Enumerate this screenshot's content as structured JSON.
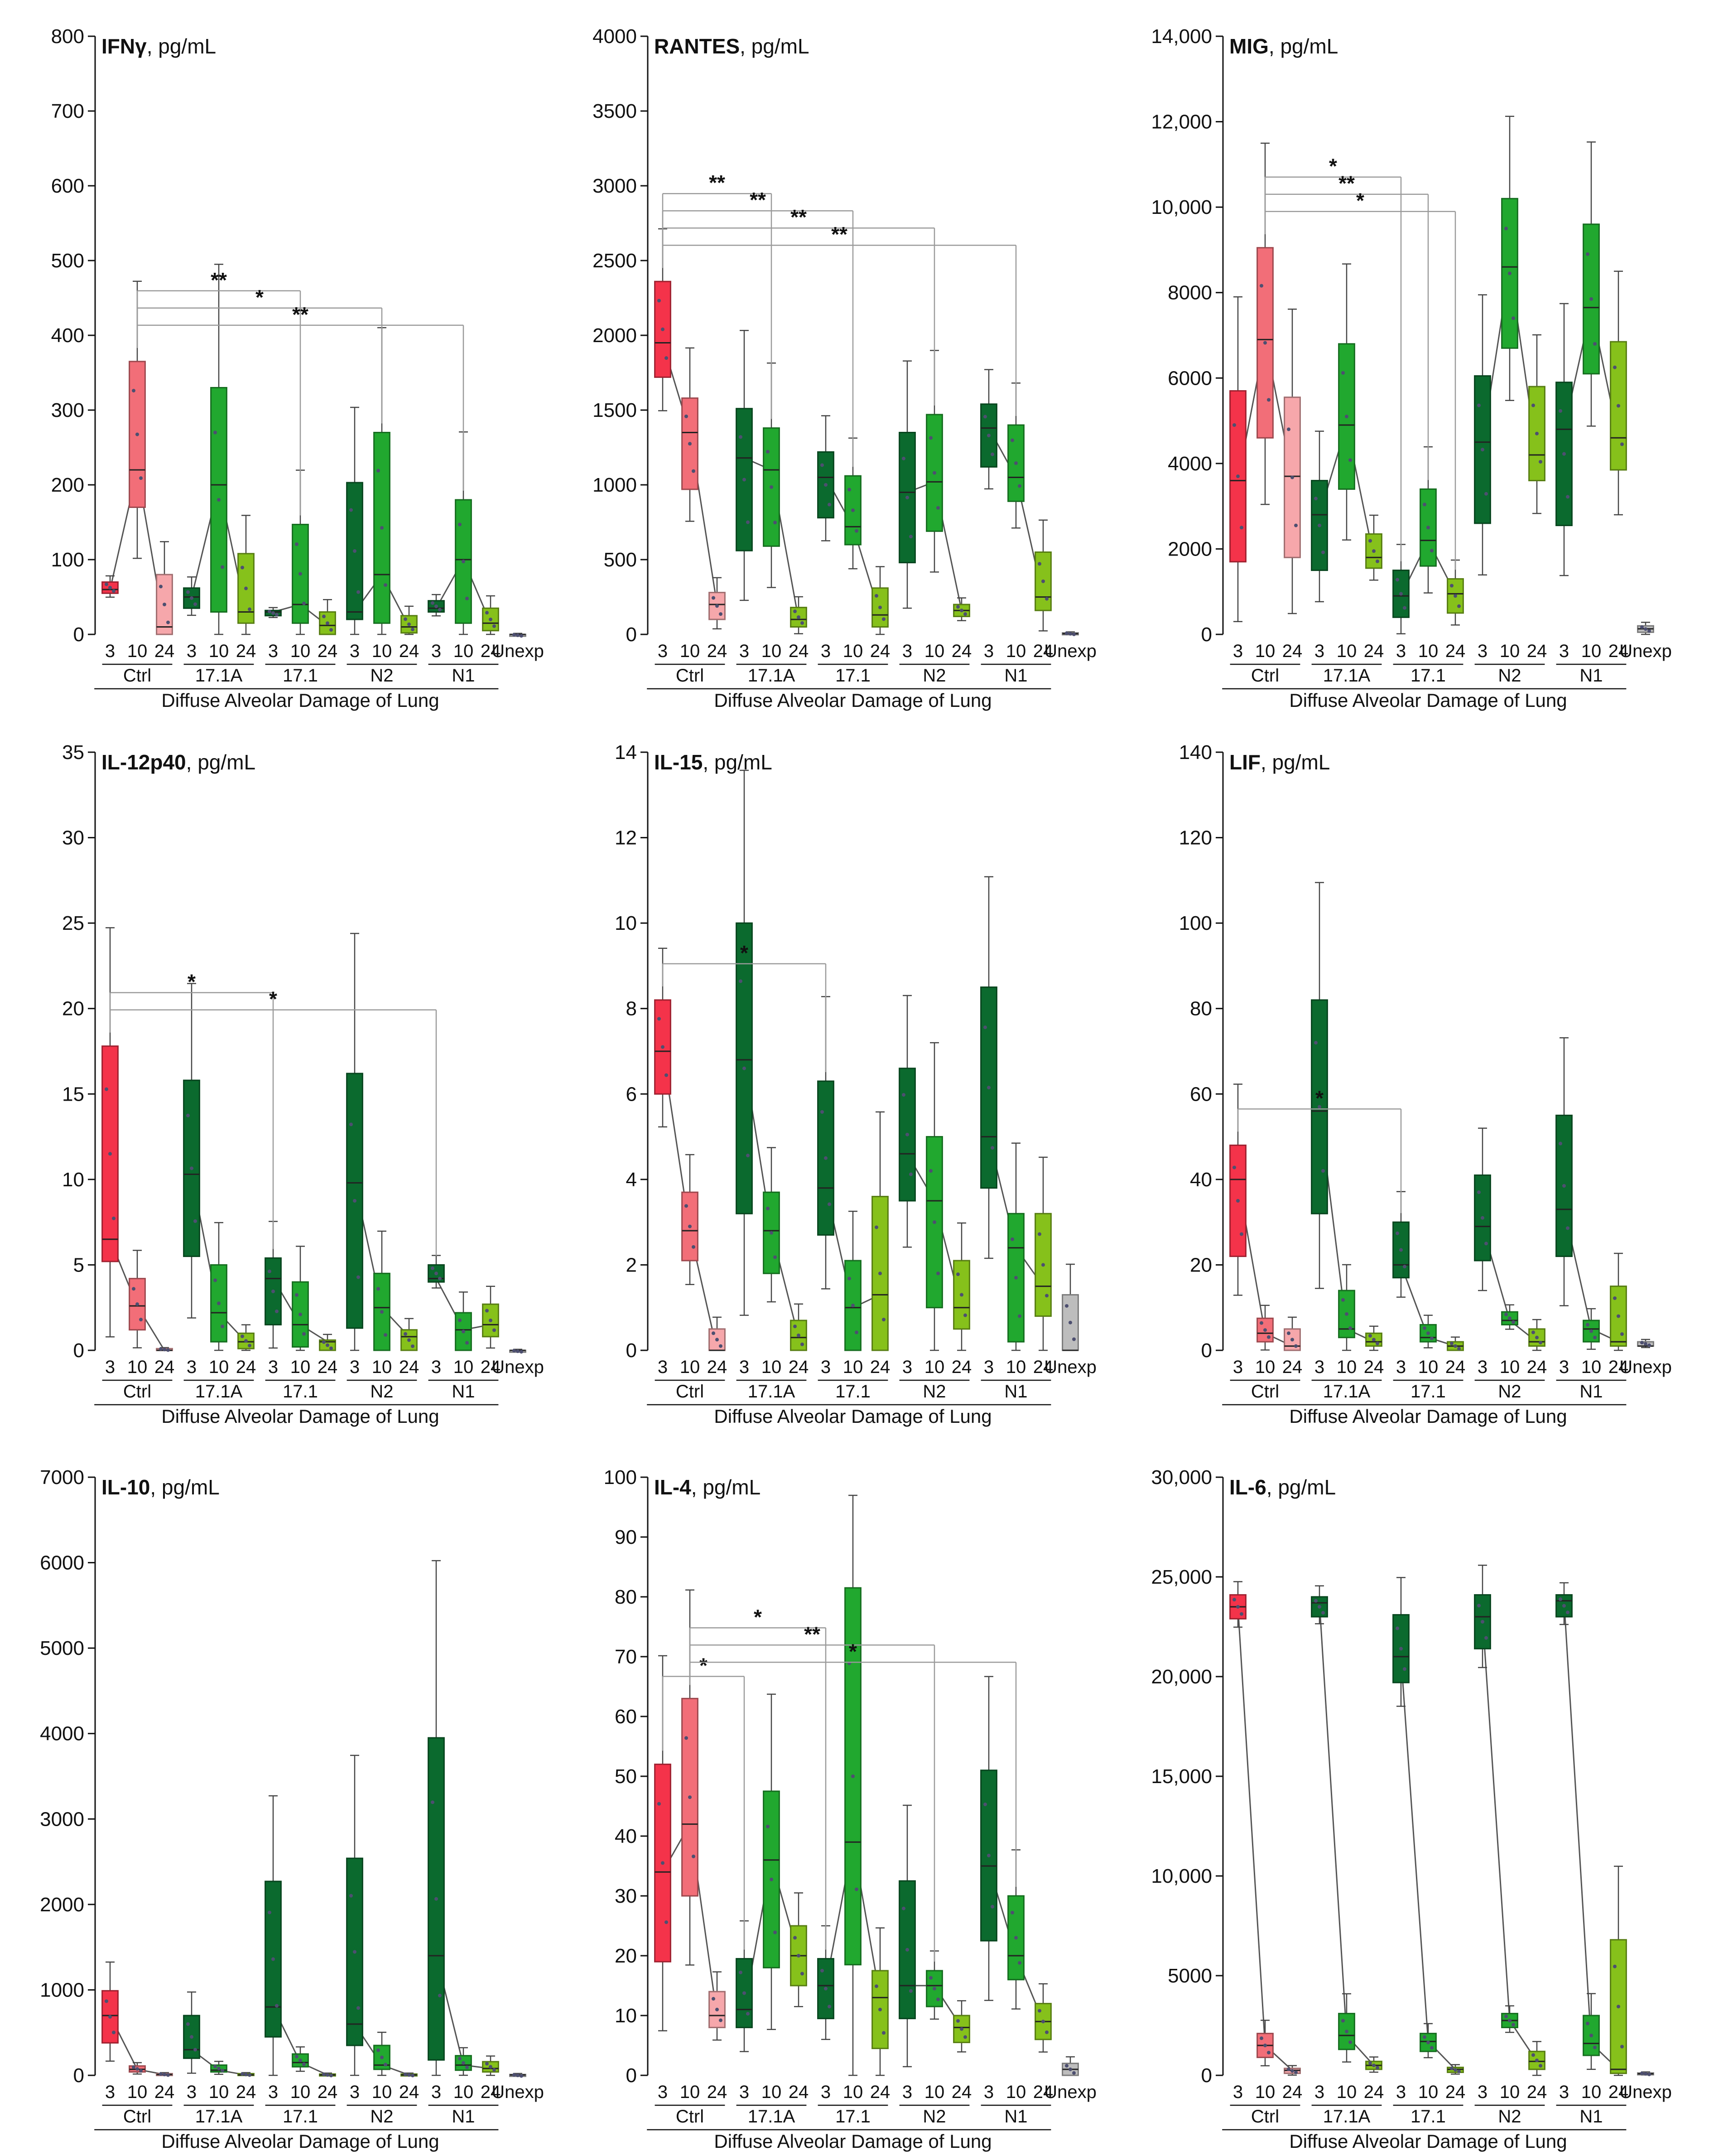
{
  "figure": {
    "xlabel": "Diffuse Alveolar Damage of Lung",
    "day_labels": [
      "3",
      "10",
      "24"
    ],
    "groups": [
      "Ctrl",
      "17.1A",
      "17.1",
      "N2",
      "N1"
    ],
    "unexp_label": "Unexp",
    "unit_suffix": ", pg/mL"
  },
  "colors": {
    "ctrl": [
      "#f4334a",
      "#f26e78",
      "#f6a7ab"
    ],
    "green": [
      "#0b6a2e",
      "#21a82f",
      "#86c11b"
    ],
    "unexp": "#bdbdbd",
    "axis": "#111111",
    "bracket": "#9a9a9a"
  },
  "chart_data": [
    {
      "type": "boxplot",
      "title": "IFNγ",
      "ylim": [
        0,
        800
      ],
      "yticks": [
        "0",
        "100",
        "200",
        "300",
        "400",
        "500",
        "600",
        "700",
        "800"
      ],
      "boxes": [
        [
          55,
          60,
          70
        ],
        [
          170,
          220,
          365
        ],
        [
          0,
          10,
          80
        ],
        [
          35,
          50,
          62
        ],
        [
          30,
          200,
          330
        ],
        [
          15,
          30,
          108
        ],
        [
          25,
          30,
          32
        ],
        [
          15,
          40,
          147
        ],
        [
          0,
          12,
          30
        ],
        [
          20,
          30,
          203
        ],
        [
          15,
          80,
          270
        ],
        [
          2,
          10,
          25
        ],
        [
          30,
          35,
          45
        ],
        [
          15,
          100,
          180
        ],
        [
          5,
          15,
          35
        ],
        [
          0,
          0,
          0
        ]
      ],
      "significance": [
        {
          "from": "Ctrl-10",
          "to": "17.1-10",
          "label": "**"
        },
        {
          "from": "Ctrl-10",
          "to": "N2-10",
          "label": "*"
        },
        {
          "from": "Ctrl-10",
          "to": "N1-10",
          "label": "**"
        }
      ]
    },
    {
      "type": "boxplot",
      "title": "RANTES",
      "ylim": [
        0,
        4000
      ],
      "yticks": [
        "0",
        "500",
        "1000",
        "1500",
        "2000",
        "2500",
        "3000",
        "3500",
        "4000"
      ],
      "boxes": [
        [
          1720,
          1950,
          2360
        ],
        [
          970,
          1350,
          1580
        ],
        [
          100,
          200,
          280
        ],
        [
          560,
          1180,
          1510
        ],
        [
          590,
          1100,
          1380
        ],
        [
          50,
          100,
          180
        ],
        [
          780,
          1050,
          1220
        ],
        [
          600,
          720,
          1060
        ],
        [
          50,
          130,
          310
        ],
        [
          480,
          950,
          1350
        ],
        [
          690,
          1020,
          1470
        ],
        [
          120,
          160,
          200
        ],
        [
          1120,
          1380,
          1540
        ],
        [
          890,
          1050,
          1400
        ],
        [
          160,
          250,
          550
        ],
        [
          0,
          5,
          10
        ]
      ],
      "significance": [
        {
          "from": "Ctrl-3",
          "to": "17.1A-10",
          "label": "**"
        },
        {
          "from": "Ctrl-3",
          "to": "17.1-10",
          "label": "**"
        },
        {
          "from": "Ctrl-3",
          "to": "N2-10",
          "label": "**"
        },
        {
          "from": "Ctrl-3",
          "to": "N1-10",
          "label": "**"
        }
      ]
    },
    {
      "type": "boxplot",
      "title": "MIG",
      "ylim": [
        0,
        14000
      ],
      "yticks": [
        "0",
        "2000",
        "4000",
        "6000",
        "8000",
        "10,000",
        "12,000",
        "14,000"
      ],
      "boxes": [
        [
          1700,
          3600,
          5700
        ],
        [
          4600,
          6900,
          9050
        ],
        [
          1800,
          3700,
          5550
        ],
        [
          1500,
          2800,
          3600
        ],
        [
          3400,
          4900,
          6800
        ],
        [
          1550,
          1800,
          2350
        ],
        [
          400,
          900,
          1500
        ],
        [
          1600,
          2200,
          3400
        ],
        [
          500,
          950,
          1300
        ],
        [
          2600,
          4500,
          6050
        ],
        [
          6700,
          8600,
          10200
        ],
        [
          3600,
          4200,
          5800
        ],
        [
          2550,
          4800,
          5900
        ],
        [
          6100,
          7650,
          9600
        ],
        [
          3850,
          4600,
          6850
        ],
        [
          50,
          130,
          200
        ]
      ],
      "significance": [
        {
          "from": "Ctrl-10",
          "to": "17.1-3",
          "label": "*"
        },
        {
          "from": "Ctrl-10",
          "to": "17.1-10",
          "label": "**"
        },
        {
          "from": "Ctrl-10",
          "to": "17.1-24",
          "label": "*"
        }
      ]
    },
    {
      "type": "boxplot",
      "title": "IL-12p40",
      "ylim": [
        0,
        35
      ],
      "yticks": [
        "0",
        "5",
        "10",
        "15",
        "20",
        "25",
        "30",
        "35"
      ],
      "boxes": [
        [
          5.2,
          6.5,
          17.8
        ],
        [
          1.2,
          2.6,
          4.2
        ],
        [
          0,
          0,
          0.1
        ],
        [
          5.5,
          10.3,
          15.8
        ],
        [
          0.5,
          2.2,
          5.0
        ],
        [
          0.1,
          0.5,
          1.0
        ],
        [
          1.5,
          4.2,
          5.4
        ],
        [
          0.2,
          1.5,
          4.0
        ],
        [
          0,
          0.5,
          0.6
        ],
        [
          1.3,
          9.8,
          16.2
        ],
        [
          0,
          2.5,
          4.5
        ],
        [
          0,
          0.8,
          1.2
        ],
        [
          4.0,
          4.2,
          5.0
        ],
        [
          0,
          1.2,
          2.2
        ],
        [
          0.8,
          1.5,
          2.7
        ],
        [
          0,
          0,
          0
        ]
      ],
      "significance": [
        {
          "from": "Ctrl-3",
          "to": "17.1-3",
          "label": "*"
        },
        {
          "from": "Ctrl-3",
          "to": "N1-3",
          "label": "*"
        }
      ]
    },
    {
      "type": "boxplot",
      "title": "IL-15",
      "ylim": [
        0,
        14
      ],
      "yticks": [
        "0",
        "2",
        "4",
        "6",
        "8",
        "10",
        "12",
        "14"
      ],
      "boxes": [
        [
          6.0,
          7.0,
          8.2
        ],
        [
          2.1,
          2.8,
          3.7
        ],
        [
          0,
          0,
          0.5
        ],
        [
          3.2,
          6.8,
          10.0
        ],
        [
          1.8,
          2.8,
          3.7
        ],
        [
          0,
          0.3,
          0.7
        ],
        [
          2.7,
          3.8,
          6.3
        ],
        [
          0,
          1.0,
          2.1
        ],
        [
          0,
          1.3,
          3.6
        ],
        [
          3.5,
          4.6,
          6.6
        ],
        [
          1.0,
          3.5,
          5.0
        ],
        [
          0.5,
          1.0,
          2.1
        ],
        [
          3.8,
          5.0,
          8.5
        ],
        [
          0.2,
          2.4,
          3.2
        ],
        [
          0.8,
          1.5,
          3.2
        ],
        [
          0,
          0,
          1.3
        ]
      ],
      "significance": [
        {
          "from": "Ctrl-3",
          "to": "17.1-3",
          "label": "*"
        }
      ]
    },
    {
      "type": "boxplot",
      "title": "LIF",
      "ylim": [
        0,
        140
      ],
      "yticks": [
        "0",
        "20",
        "40",
        "60",
        "80",
        "100",
        "120",
        "140"
      ],
      "boxes": [
        [
          22,
          40,
          48
        ],
        [
          2,
          4,
          7.5
        ],
        [
          0,
          1,
          5
        ],
        [
          32,
          56,
          82
        ],
        [
          3,
          5,
          14
        ],
        [
          1,
          2,
          4
        ],
        [
          17,
          20,
          30
        ],
        [
          2,
          3,
          6
        ],
        [
          0,
          1,
          2
        ],
        [
          21,
          29,
          41
        ],
        [
          6,
          7,
          9
        ],
        [
          1,
          2,
          5
        ],
        [
          22,
          33,
          55
        ],
        [
          2,
          5,
          7
        ],
        [
          1,
          2,
          15
        ],
        [
          1,
          1,
          2
        ]
      ],
      "significance": [
        {
          "from": "Ctrl-3",
          "to": "17.1-3",
          "label": "*"
        }
      ]
    },
    {
      "type": "boxplot",
      "title": "IL-10",
      "ylim": [
        0,
        7000
      ],
      "yticks": [
        "0",
        "1000",
        "2000",
        "3000",
        "4000",
        "5000",
        "6000",
        "7000"
      ],
      "boxes": [
        [
          380,
          700,
          990
        ],
        [
          40,
          70,
          110
        ],
        [
          0,
          10,
          20
        ],
        [
          200,
          300,
          700
        ],
        [
          40,
          60,
          120
        ],
        [
          0,
          5,
          20
        ],
        [
          450,
          800,
          2270
        ],
        [
          100,
          150,
          250
        ],
        [
          0,
          5,
          15
        ],
        [
          350,
          600,
          2540
        ],
        [
          70,
          120,
          350
        ],
        [
          0,
          5,
          15
        ],
        [
          180,
          1400,
          3950
        ],
        [
          60,
          120,
          230
        ],
        [
          40,
          80,
          160
        ],
        [
          0,
          5,
          10
        ]
      ],
      "significance": []
    },
    {
      "type": "boxplot",
      "title": "IL-4",
      "ylim": [
        0,
        100
      ],
      "yticks": [
        "0",
        "10",
        "20",
        "30",
        "40",
        "50",
        "60",
        "70",
        "80",
        "90",
        "100"
      ],
      "boxes": [
        [
          19,
          34,
          52
        ],
        [
          30,
          42,
          63
        ],
        [
          8,
          10,
          14
        ],
        [
          8,
          11,
          19.5
        ],
        [
          18,
          36,
          47.5
        ],
        [
          15,
          20,
          25
        ],
        [
          9.5,
          15,
          19.5
        ],
        [
          18.5,
          39,
          81.5
        ],
        [
          4.5,
          13,
          17.5
        ],
        [
          9.5,
          15,
          32.5
        ],
        [
          11.5,
          15,
          17.5
        ],
        [
          5.5,
          8,
          10
        ],
        [
          22.5,
          35,
          51
        ],
        [
          16,
          20,
          30
        ],
        [
          6,
          9,
          12
        ],
        [
          0,
          1,
          2
        ]
      ],
      "significance": [
        {
          "from": "Ctrl-3",
          "to": "17.1A-3",
          "label": "*"
        },
        {
          "from": "Ctrl-10",
          "to": "17.1-3",
          "label": "*"
        },
        {
          "from": "Ctrl-10",
          "to": "N2-10",
          "label": "**"
        },
        {
          "from": "Ctrl-10",
          "to": "N1-10",
          "label": "*"
        }
      ]
    },
    {
      "type": "boxplot",
      "title": "IL-6",
      "ylim": [
        0,
        30000
      ],
      "yticks": [
        "0",
        "5000",
        "10,000",
        "15,000",
        "20,000",
        "25,000",
        "30,000"
      ],
      "boxes": [
        [
          22900,
          23500,
          24100
        ],
        [
          900,
          1500,
          2100
        ],
        [
          100,
          250,
          350
        ],
        [
          23000,
          23700,
          24000
        ],
        [
          1300,
          2000,
          3100
        ],
        [
          300,
          500,
          700
        ],
        [
          19700,
          21000,
          23100
        ],
        [
          1200,
          1700,
          2100
        ],
        [
          150,
          300,
          400
        ],
        [
          21400,
          23000,
          24100
        ],
        [
          2400,
          2750,
          3100
        ],
        [
          300,
          700,
          1200
        ],
        [
          23000,
          23800,
          24100
        ],
        [
          1000,
          1600,
          3000
        ],
        [
          100,
          300,
          6800
        ],
        [
          50,
          80,
          120
        ]
      ],
      "significance": []
    }
  ]
}
